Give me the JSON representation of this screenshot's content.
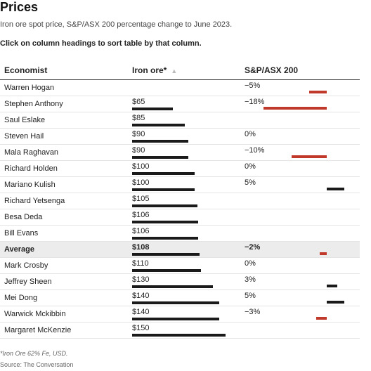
{
  "title": "Prices",
  "subtitle": "Iron ore spot price, S&P/ASX 200 percentage change to June 2023.",
  "instruction": "Click on column headings to sort table by that column.",
  "columns": {
    "economist": "Economist",
    "iron": "Iron ore*",
    "asx": "S&P/ASX 200",
    "sort_icon": "▲"
  },
  "footnote": "*Iron Ore 62% Fe, USD.",
  "source": "Source: The Conversation",
  "colors": {
    "positive": "#1a1a1a",
    "negative": "#c0392b",
    "average_bg": "#ececec"
  },
  "chart_data": {
    "type": "table",
    "iron_scale_max": 150,
    "asx_scale_abs_max": 18,
    "rows": [
      {
        "name": "Warren Hogan",
        "iron": null,
        "iron_label": "",
        "asx": -5,
        "asx_label": "−5%"
      },
      {
        "name": "Stephen Anthony",
        "iron": 65,
        "iron_label": "$65",
        "asx": -18,
        "asx_label": "−18%"
      },
      {
        "name": "Saul Eslake",
        "iron": 85,
        "iron_label": "$85",
        "asx": null,
        "asx_label": ""
      },
      {
        "name": "Steven Hail",
        "iron": 90,
        "iron_label": "$90",
        "asx": 0,
        "asx_label": "0%"
      },
      {
        "name": "Mala Raghavan",
        "iron": 90,
        "iron_label": "$90",
        "asx": -10,
        "asx_label": "−10%"
      },
      {
        "name": "Richard Holden",
        "iron": 100,
        "iron_label": "$100",
        "asx": 0,
        "asx_label": "0%"
      },
      {
        "name": "Mariano Kulish",
        "iron": 100,
        "iron_label": "$100",
        "asx": 5,
        "asx_label": "5%"
      },
      {
        "name": "Richard Yetsenga",
        "iron": 105,
        "iron_label": "$105",
        "asx": null,
        "asx_label": ""
      },
      {
        "name": "Besa Deda",
        "iron": 106,
        "iron_label": "$106",
        "asx": null,
        "asx_label": ""
      },
      {
        "name": "Bill Evans",
        "iron": 106,
        "iron_label": "$106",
        "asx": null,
        "asx_label": ""
      },
      {
        "name": "Average",
        "iron": 108,
        "iron_label": "$108",
        "asx": -2,
        "asx_label": "−2%",
        "average": true
      },
      {
        "name": "Mark Crosby",
        "iron": 110,
        "iron_label": "$110",
        "asx": 0,
        "asx_label": "0%"
      },
      {
        "name": "Jeffrey Sheen",
        "iron": 130,
        "iron_label": "$130",
        "asx": 3,
        "asx_label": "3%"
      },
      {
        "name": "Mei Dong",
        "iron": 140,
        "iron_label": "$140",
        "asx": 5,
        "asx_label": "5%"
      },
      {
        "name": "Warwick Mckibbin",
        "iron": 140,
        "iron_label": "$140",
        "asx": -3,
        "asx_label": "−3%"
      },
      {
        "name": "Margaret McKenzie",
        "iron": 150,
        "iron_label": "$150",
        "asx": null,
        "asx_label": ""
      }
    ]
  }
}
